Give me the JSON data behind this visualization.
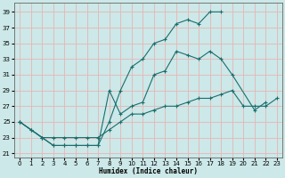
{
  "xlabel": "Humidex (Indice chaleur)",
  "bg_color": "#cce8e8",
  "grid_color": "#e8b4b4",
  "line_color": "#1a6e6e",
  "xlim": [
    -0.5,
    23.5
  ],
  "ylim": [
    20.5,
    40.2
  ],
  "xticks": [
    0,
    1,
    2,
    3,
    4,
    5,
    6,
    7,
    8,
    9,
    10,
    11,
    12,
    13,
    14,
    15,
    16,
    17,
    18,
    19,
    20,
    21,
    22,
    23
  ],
  "yticks": [
    21,
    23,
    25,
    27,
    29,
    31,
    33,
    35,
    37,
    39
  ],
  "series": [
    {
      "x": [
        0,
        1,
        2,
        3,
        4,
        5,
        6,
        7,
        8,
        9,
        10,
        11,
        12,
        13,
        14,
        15,
        16,
        17,
        18
      ],
      "y": [
        25,
        24,
        23,
        22,
        22,
        22,
        22,
        22,
        25,
        29,
        32,
        33,
        35,
        35.5,
        37.5,
        38,
        37.5,
        39,
        39
      ]
    },
    {
      "x": [
        0,
        1,
        2,
        3,
        4,
        5,
        6,
        7,
        8,
        9,
        10,
        11,
        12,
        13,
        14,
        15,
        16,
        17,
        18,
        19,
        21,
        22
      ],
      "y": [
        25,
        24,
        23,
        22,
        22,
        22,
        22,
        22,
        29,
        26,
        27,
        27.5,
        31,
        31.5,
        34,
        33.5,
        33,
        34,
        33,
        31,
        26.5,
        27.5
      ]
    },
    {
      "x": [
        0,
        2,
        3,
        4,
        5,
        6,
        7,
        8,
        9,
        10,
        11,
        12,
        13,
        14,
        15,
        16,
        17,
        18,
        19,
        20,
        21,
        22,
        23
      ],
      "y": [
        25,
        23,
        23,
        23,
        23,
        23,
        23,
        24,
        25,
        26,
        26,
        26.5,
        27,
        27,
        27.5,
        28,
        28,
        28.5,
        29,
        27,
        27,
        27,
        28
      ]
    }
  ]
}
